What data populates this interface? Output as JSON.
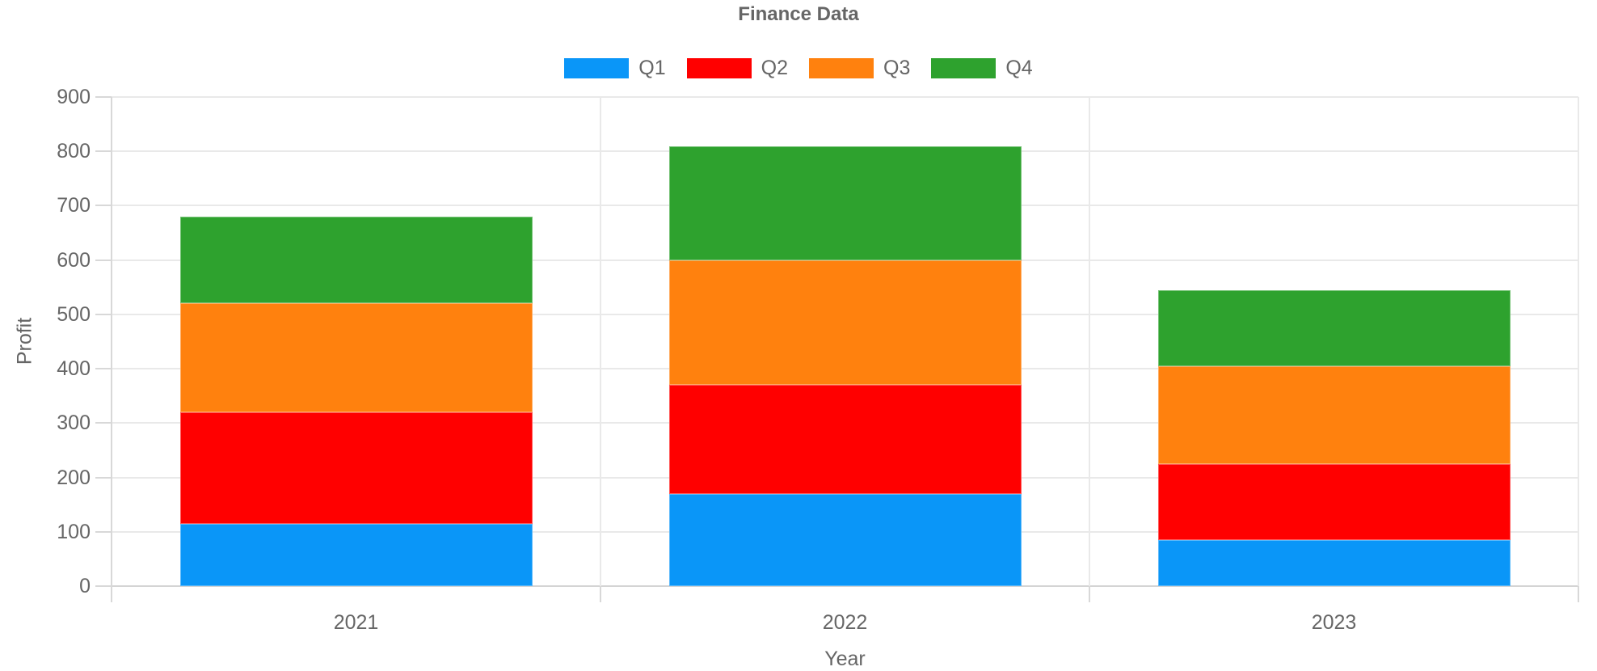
{
  "chart_data": {
    "type": "bar",
    "stacked": true,
    "title": "Finance Data",
    "xlabel": "Year",
    "ylabel": "Profit",
    "categories": [
      "2021",
      "2022",
      "2023"
    ],
    "series": [
      {
        "name": "Q1",
        "color": "#0A96F8",
        "values": [
          115,
          170,
          85
        ]
      },
      {
        "name": "Q2",
        "color": "#FF0000",
        "values": [
          205,
          200,
          140
        ]
      },
      {
        "name": "Q3",
        "color": "#FF810E",
        "values": [
          200,
          230,
          180
        ]
      },
      {
        "name": "Q4",
        "color": "#2EA22E",
        "values": [
          160,
          210,
          140
        ]
      }
    ],
    "stack_totals": [
      680,
      810,
      545
    ],
    "ylim": [
      0,
      900
    ],
    "y_tick_step": 100,
    "y_ticks": [
      "0",
      "100",
      "200",
      "300",
      "400",
      "500",
      "600",
      "700",
      "800",
      "900"
    ],
    "grid": true,
    "legend_position": "top"
  },
  "colors": {
    "text": "#666666",
    "grid_line": "#e9e9e9",
    "axis_line": "#d8d8d8",
    "zero_line": "#d4d4d4",
    "background": "#ffffff"
  }
}
